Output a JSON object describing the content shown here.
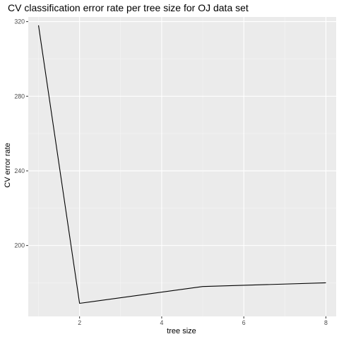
{
  "chart_data": {
    "type": "line",
    "title": "CV classification error rate per tree size for OJ data set",
    "xlabel": "tree size",
    "ylabel": "CV error rate",
    "xlim": [
      0.75,
      8.25
    ],
    "ylim": [
      162,
      322.5
    ],
    "x_ticks": [
      2,
      4,
      6,
      8
    ],
    "y_ticks": [
      200,
      240,
      280,
      320
    ],
    "grid": true,
    "legend": "none",
    "series": [
      {
        "x": [
          1,
          2,
          5,
          8
        ],
        "values": [
          318,
          169,
          178,
          180
        ]
      }
    ],
    "colors": {
      "panel": "#ebebeb",
      "grid_major": "#ffffff",
      "grid_minor": "#f5f5f5",
      "line": "#000000",
      "tick_text": "#4d4d4d",
      "axis_text": "#000000"
    }
  }
}
